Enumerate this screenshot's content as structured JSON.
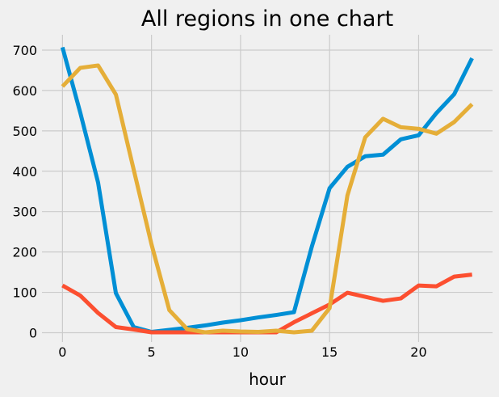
{
  "chart_data": {
    "type": "line",
    "title": "All regions in one chart",
    "xlabel": "hour",
    "ylabel": "",
    "xlim": [
      -1.15,
      24.15
    ],
    "ylim": [
      -23,
      738
    ],
    "xticks": [
      0,
      5,
      10,
      15,
      20
    ],
    "yticks": [
      0,
      100,
      200,
      300,
      400,
      500,
      600,
      700
    ],
    "grid": true,
    "legend": "none",
    "x": [
      0,
      1,
      2,
      3,
      4,
      5,
      6,
      7,
      8,
      9,
      10,
      11,
      12,
      13,
      14,
      15,
      16,
      17,
      18,
      19,
      20,
      21,
      22,
      23
    ],
    "series": [
      {
        "color": "#008fd5",
        "values": [
          707,
          545,
          372,
          98,
          14,
          2,
          7,
          12,
          18,
          25,
          31,
          38,
          44,
          51,
          213,
          358,
          411,
          437,
          441,
          479,
          489,
          544,
          591,
          680
        ]
      },
      {
        "color": "#fc4f30",
        "values": [
          117,
          92,
          49,
          14,
          8,
          1,
          1,
          1,
          1,
          1,
          1,
          1,
          1,
          26,
          48,
          70,
          99,
          89,
          79,
          85,
          117,
          115,
          139,
          144
        ]
      },
      {
        "color": "#e5ae38",
        "values": [
          610,
          656,
          662,
          590,
          404,
          219,
          56,
          9,
          1,
          5,
          3,
          2,
          5,
          1,
          5,
          61,
          340,
          484,
          530,
          509,
          505,
          493,
          522,
          566
        ]
      }
    ]
  }
}
